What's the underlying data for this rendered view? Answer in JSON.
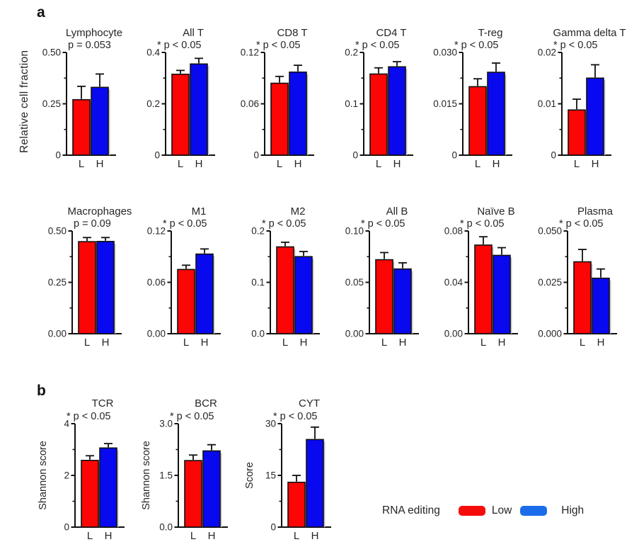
{
  "figure": {
    "panel_a_label": "a",
    "panel_b_label": "b",
    "row1_ylabel": "Relative cell fraction",
    "x_categories": [
      "L",
      "H"
    ],
    "legend": {
      "title": "RNA editing",
      "items": [
        {
          "label": "Low",
          "color": "#f60b0b"
        },
        {
          "label": "High",
          "color": "#1b6ceb"
        }
      ]
    }
  },
  "colors": {
    "bar_low": "#fb0505",
    "bar_high": "#0909f0",
    "axis": "#111111",
    "text": "#262626",
    "shadow": "#c4c4c4"
  },
  "chart_data": [
    {
      "panel": "a1",
      "type": "bar",
      "title": "Lymphocyte",
      "p_label": "p = 0.053",
      "starred": false,
      "ylabel": null,
      "ylim": [
        0,
        0.5
      ],
      "yticks": [
        {
          "v": 0,
          "t": "0"
        },
        {
          "v": 0.25,
          "t": "0.25"
        },
        {
          "v": 0.5,
          "t": "0.50"
        }
      ],
      "minor_ticks": [
        0.125,
        0.375
      ],
      "categories": [
        "L",
        "H"
      ],
      "series": [
        {
          "name": "Low",
          "value": 0.27,
          "err": 0.065
        },
        {
          "name": "High",
          "value": 0.33,
          "err": 0.065
        }
      ]
    },
    {
      "panel": "a1",
      "type": "bar",
      "title": "All T",
      "p_label": "p < 0.05",
      "starred": true,
      "ylabel": null,
      "ylim": [
        0,
        0.4
      ],
      "yticks": [
        {
          "v": 0,
          "t": "0"
        },
        {
          "v": 0.2,
          "t": "0.2"
        },
        {
          "v": 0.4,
          "t": "0.4"
        }
      ],
      "minor_ticks": [
        0.1,
        0.3
      ],
      "categories": [
        "L",
        "H"
      ],
      "series": [
        {
          "name": "Low",
          "value": 0.315,
          "err": 0.015
        },
        {
          "name": "High",
          "value": 0.355,
          "err": 0.022
        }
      ]
    },
    {
      "panel": "a1",
      "type": "bar",
      "title": "CD8 T",
      "p_label": "p < 0.05",
      "starred": true,
      "ylabel": null,
      "ylim": [
        0,
        0.12
      ],
      "yticks": [
        {
          "v": 0,
          "t": "0"
        },
        {
          "v": 0.06,
          "t": "0.06"
        },
        {
          "v": 0.12,
          "t": "0.12"
        }
      ],
      "minor_ticks": [
        0.03,
        0.09
      ],
      "categories": [
        "L",
        "H"
      ],
      "series": [
        {
          "name": "Low",
          "value": 0.084,
          "err": 0.008
        },
        {
          "name": "High",
          "value": 0.097,
          "err": 0.008
        }
      ]
    },
    {
      "panel": "a1",
      "type": "bar",
      "title": "CD4 T",
      "p_label": "p < 0.05",
      "starred": true,
      "ylabel": null,
      "ylim": [
        0,
        0.2
      ],
      "yticks": [
        {
          "v": 0,
          "t": "0"
        },
        {
          "v": 0.1,
          "t": "0.1"
        },
        {
          "v": 0.2,
          "t": "0.2"
        }
      ],
      "minor_ticks": [
        0.05,
        0.15
      ],
      "categories": [
        "L",
        "H"
      ],
      "series": [
        {
          "name": "Low",
          "value": 0.158,
          "err": 0.012
        },
        {
          "name": "High",
          "value": 0.172,
          "err": 0.01
        }
      ]
    },
    {
      "panel": "a1",
      "type": "bar",
      "title": "T-reg",
      "p_label": "p < 0.05",
      "starred": true,
      "ylabel": null,
      "ylim": [
        0,
        0.03
      ],
      "yticks": [
        {
          "v": 0,
          "t": "0"
        },
        {
          "v": 0.015,
          "t": "0.015"
        },
        {
          "v": 0.03,
          "t": "0.030"
        }
      ],
      "minor_ticks": [
        0.0075,
        0.0225
      ],
      "categories": [
        "L",
        "H"
      ],
      "series": [
        {
          "name": "Low",
          "value": 0.02,
          "err": 0.0023
        },
        {
          "name": "High",
          "value": 0.0242,
          "err": 0.0027
        }
      ]
    },
    {
      "panel": "a1",
      "type": "bar",
      "title": "Gamma delta T",
      "p_label": "p < 0.05",
      "starred": true,
      "ylabel": null,
      "ylim": [
        0,
        0.02
      ],
      "yticks": [
        {
          "v": 0,
          "t": "0"
        },
        {
          "v": 0.01,
          "t": "0.01"
        },
        {
          "v": 0.02,
          "t": "0.02"
        }
      ],
      "minor_ticks": [
        0.005,
        0.015
      ],
      "categories": [
        "L",
        "H"
      ],
      "series": [
        {
          "name": "Low",
          "value": 0.0088,
          "err": 0.0021
        },
        {
          "name": "High",
          "value": 0.015,
          "err": 0.0026
        }
      ]
    },
    {
      "panel": "a2",
      "type": "bar",
      "title": "Macrophages",
      "p_label": "p = 0.09",
      "starred": false,
      "ylabel": null,
      "ylim": [
        0,
        0.5
      ],
      "yticks": [
        {
          "v": 0,
          "t": "0.00"
        },
        {
          "v": 0.25,
          "t": "0.25"
        },
        {
          "v": 0.5,
          "t": "0.50"
        }
      ],
      "minor_ticks": [
        0.125,
        0.375
      ],
      "categories": [
        "L",
        "H"
      ],
      "series": [
        {
          "name": "Low",
          "value": 0.448,
          "err": 0.02
        },
        {
          "name": "High",
          "value": 0.449,
          "err": 0.019
        }
      ]
    },
    {
      "panel": "a2",
      "type": "bar",
      "title": "M1",
      "p_label": "p < 0.05",
      "starred": true,
      "ylabel": null,
      "ylim": [
        0,
        0.12
      ],
      "yticks": [
        {
          "v": 0,
          "t": "0.00"
        },
        {
          "v": 0.06,
          "t": "0.06"
        },
        {
          "v": 0.12,
          "t": "0.12"
        }
      ],
      "minor_ticks": [
        0.03,
        0.09
      ],
      "categories": [
        "L",
        "H"
      ],
      "series": [
        {
          "name": "Low",
          "value": 0.075,
          "err": 0.005
        },
        {
          "name": "High",
          "value": 0.093,
          "err": 0.006
        }
      ]
    },
    {
      "panel": "a2",
      "type": "bar",
      "title": "M2",
      "p_label": "p < 0.05",
      "starred": true,
      "ylabel": null,
      "ylim": [
        0,
        0.2
      ],
      "yticks": [
        {
          "v": 0,
          "t": "0.0"
        },
        {
          "v": 0.1,
          "t": "0.1"
        },
        {
          "v": 0.2,
          "t": "0.2"
        }
      ],
      "minor_ticks": [
        0.05,
        0.15
      ],
      "categories": [
        "L",
        "H"
      ],
      "series": [
        {
          "name": "Low",
          "value": 0.169,
          "err": 0.009
        },
        {
          "name": "High",
          "value": 0.15,
          "err": 0.01
        }
      ]
    },
    {
      "panel": "a2",
      "type": "bar",
      "title": "All B",
      "p_label": "p < 0.05",
      "starred": true,
      "ylabel": null,
      "ylim": [
        0,
        0.1
      ],
      "yticks": [
        {
          "v": 0,
          "t": "0.00"
        },
        {
          "v": 0.05,
          "t": "0.05"
        },
        {
          "v": 0.1,
          "t": "0.10"
        }
      ],
      "minor_ticks": [
        0.025,
        0.075
      ],
      "categories": [
        "L",
        "H"
      ],
      "series": [
        {
          "name": "Low",
          "value": 0.072,
          "err": 0.007
        },
        {
          "name": "High",
          "value": 0.063,
          "err": 0.006
        }
      ]
    },
    {
      "panel": "a2",
      "type": "bar",
      "title": "Naïve B",
      "p_label": "p < 0.05",
      "starred": true,
      "ylabel": null,
      "ylim": [
        0,
        0.08
      ],
      "yticks": [
        {
          "v": 0,
          "t": "0.00"
        },
        {
          "v": 0.04,
          "t": "0.04"
        },
        {
          "v": 0.08,
          "t": "0.08"
        }
      ],
      "minor_ticks": [
        0.02,
        0.06
      ],
      "categories": [
        "L",
        "H"
      ],
      "series": [
        {
          "name": "Low",
          "value": 0.069,
          "err": 0.0065
        },
        {
          "name": "High",
          "value": 0.061,
          "err": 0.006
        }
      ]
    },
    {
      "panel": "a2",
      "type": "bar",
      "title": "Plasma",
      "p_label": "p < 0.05",
      "starred": true,
      "ylabel": null,
      "ylim": [
        0,
        0.05
      ],
      "yticks": [
        {
          "v": 0,
          "t": "0.000"
        },
        {
          "v": 0.025,
          "t": "0.025"
        },
        {
          "v": 0.05,
          "t": "0.050"
        }
      ],
      "minor_ticks": [
        0.0125,
        0.0375
      ],
      "categories": [
        "L",
        "H"
      ],
      "series": [
        {
          "name": "Low",
          "value": 0.035,
          "err": 0.006
        },
        {
          "name": "High",
          "value": 0.027,
          "err": 0.0045
        }
      ]
    },
    {
      "panel": "b",
      "type": "bar",
      "title": "TCR",
      "p_label": "p < 0.05",
      "starred": true,
      "ylabel": "Shannon score",
      "ylim": [
        0,
        4
      ],
      "yticks": [
        {
          "v": 0,
          "t": "0"
        },
        {
          "v": 2,
          "t": "2"
        },
        {
          "v": 4,
          "t": "4"
        }
      ],
      "minor_ticks": [
        1,
        3
      ],
      "categories": [
        "L",
        "H"
      ],
      "series": [
        {
          "name": "Low",
          "value": 2.58,
          "err": 0.18
        },
        {
          "name": "High",
          "value": 3.06,
          "err": 0.17
        }
      ]
    },
    {
      "panel": "b",
      "type": "bar",
      "title": "BCR",
      "p_label": "p < 0.05",
      "starred": true,
      "ylabel": "Shannon score",
      "ylim": [
        0,
        3.0
      ],
      "yticks": [
        {
          "v": 0,
          "t": "0.0"
        },
        {
          "v": 1.5,
          "t": "1.5"
        },
        {
          "v": 3.0,
          "t": "3.0"
        }
      ],
      "minor_ticks": [
        0.75,
        2.25
      ],
      "categories": [
        "L",
        "H"
      ],
      "series": [
        {
          "name": "Low",
          "value": 1.93,
          "err": 0.16
        },
        {
          "name": "High",
          "value": 2.21,
          "err": 0.18
        }
      ]
    },
    {
      "panel": "b",
      "type": "bar",
      "title": "CYT",
      "p_label": "p < 0.05",
      "starred": true,
      "ylabel": "Score",
      "ylim": [
        0,
        30
      ],
      "yticks": [
        {
          "v": 0,
          "t": "0"
        },
        {
          "v": 15,
          "t": "15"
        },
        {
          "v": 30,
          "t": "30"
        }
      ],
      "minor_ticks": [
        7.5,
        22.5
      ],
      "categories": [
        "L",
        "H"
      ],
      "series": [
        {
          "name": "Low",
          "value": 13.0,
          "err": 2.0
        },
        {
          "name": "High",
          "value": 25.4,
          "err": 3.6
        }
      ]
    }
  ]
}
